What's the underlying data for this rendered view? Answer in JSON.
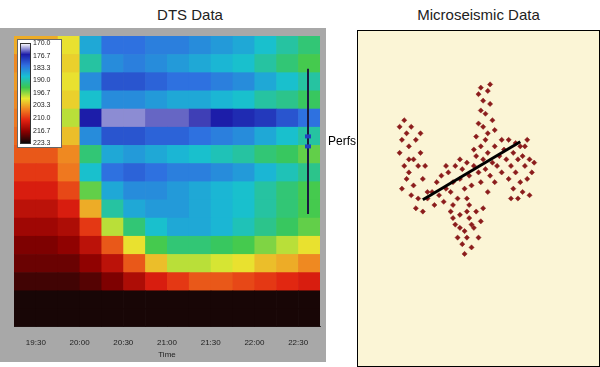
{
  "chart_data": [
    {
      "type": "heatmap",
      "title": "DTS Data",
      "x_label": "Time",
      "x": [
        19.375,
        19.625,
        19.875,
        20.125,
        20.375,
        20.625,
        20.875,
        21.125,
        21.375,
        21.625,
        21.875,
        22.125,
        22.375,
        22.625
      ],
      "y": [
        1,
        2,
        3,
        4,
        5,
        6,
        7,
        8,
        9,
        10,
        11,
        12,
        13,
        14,
        15,
        16
      ],
      "z": [
        [
          203,
          203,
          200,
          186,
          182,
          182,
          183,
          183,
          184,
          185,
          186,
          188,
          190,
          192
        ],
        [
          205,
          204,
          201,
          190,
          184,
          183,
          184,
          185,
          186,
          187,
          188,
          190,
          192,
          194
        ],
        [
          204,
          204,
          200,
          184,
          180,
          180,
          181,
          182,
          182,
          183,
          184,
          186,
          188,
          190
        ],
        [
          205,
          205,
          201,
          188,
          184,
          184,
          185,
          186,
          186,
          187,
          188,
          190,
          191,
          193
        ],
        [
          206,
          206,
          198,
          176,
          173,
          173,
          174,
          174,
          175,
          176,
          177,
          178,
          180,
          182
        ],
        [
          207,
          206,
          202,
          184,
          180,
          180,
          181,
          181,
          182,
          183,
          184,
          186,
          188,
          190
        ],
        [
          208,
          208,
          205,
          192,
          186,
          185,
          186,
          187,
          188,
          189,
          190,
          192,
          193,
          195
        ],
        [
          210,
          210,
          206,
          188,
          182,
          181,
          182,
          183,
          183,
          184,
          185,
          187,
          189,
          191
        ],
        [
          212,
          212,
          209,
          195,
          186,
          184,
          184,
          185,
          186,
          187,
          188,
          190,
          192,
          194
        ],
        [
          214,
          214,
          212,
          203,
          190,
          186,
          185,
          185,
          186,
          187,
          188,
          190,
          192,
          194
        ],
        [
          216,
          216,
          215,
          210,
          198,
          192,
          188,
          186,
          186,
          187,
          189,
          191,
          193,
          195
        ],
        [
          218,
          218,
          217,
          214,
          208,
          200,
          194,
          192,
          192,
          193,
          194,
          196,
          198,
          200
        ],
        [
          219,
          219,
          219,
          217,
          214,
          208,
          202,
          198,
          198,
          199,
          200,
          202,
          203,
          205
        ],
        [
          221,
          221,
          221,
          220,
          218,
          215,
          212,
          210,
          208,
          208,
          209,
          210,
          211,
          212
        ],
        [
          223,
          223,
          223,
          223,
          223,
          223,
          223,
          223,
          223,
          223,
          223,
          223,
          223,
          223
        ],
        [
          223,
          223,
          223,
          223,
          223,
          223,
          223,
          223,
          223,
          223,
          223,
          223,
          223,
          223
        ]
      ],
      "xlim": [
        19.25,
        22.75
      ],
      "xticks": [
        {
          "value": 19.5,
          "label": "19:30"
        },
        {
          "value": 20,
          "label": "20:00"
        },
        {
          "value": 20.5,
          "label": "20:30"
        },
        {
          "value": 21,
          "label": "21:00"
        },
        {
          "value": 21.5,
          "label": "21:30"
        },
        {
          "value": 22,
          "label": "22:00"
        },
        {
          "value": 22.5,
          "label": "22:30"
        }
      ],
      "ylim": [
        16.5,
        0.5
      ],
      "tick_labels": "x",
      "grid": false,
      "colorbar": {
        "range": [
          170,
          223.3
        ],
        "ticks": [
          {
            "value": 170,
            "label": "170.0"
          },
          176.7,
          183.3,
          {
            "value": 190,
            "label": "190.0"
          },
          196.7,
          203.3,
          {
            "value": 210,
            "label": "210.0"
          },
          216.7,
          223.3
        ]
      },
      "annotations": [
        {
          "text": "Perfs",
          "y": [
            2.3,
            10.3
          ]
        }
      ]
    },
    {
      "type": "scatter",
      "title": "Microseismic Data",
      "xlim": [
        0,
        100
      ],
      "ylim": [
        0,
        100
      ],
      "tick_labels": false,
      "grid": false,
      "series": [
        {
          "type": "scatter",
          "color": "#8b1c1c",
          "marker": "diamond",
          "values": [
            [
              16,
              72
            ],
            [
              17,
              68
            ],
            [
              18,
              74
            ],
            [
              16,
              64
            ],
            [
              19,
              70
            ],
            [
              20,
              66
            ],
            [
              18,
              60
            ],
            [
              21,
              72
            ],
            [
              22,
              62
            ],
            [
              20,
              58
            ],
            [
              23,
              68
            ],
            [
              19,
              56
            ],
            [
              24,
              60
            ],
            [
              22,
              54
            ],
            [
              25,
              64
            ],
            [
              21,
              51
            ],
            [
              26,
              56
            ],
            [
              24,
              50
            ],
            [
              17,
              53
            ],
            [
              27,
              60
            ],
            [
              23,
              47
            ],
            [
              28,
              52
            ],
            [
              26,
              46
            ],
            [
              20,
              62
            ],
            [
              25,
              70
            ],
            [
              28,
              50
            ],
            [
              30,
              52
            ],
            [
              31,
              48
            ],
            [
              32,
              55
            ],
            [
              33,
              51
            ],
            [
              34,
              57
            ],
            [
              35,
              49
            ],
            [
              36,
              53
            ],
            [
              37,
              58
            ],
            [
              38,
              52
            ],
            [
              39,
              55
            ],
            [
              40,
              60
            ],
            [
              41,
              50
            ],
            [
              42,
              56
            ],
            [
              43,
              59
            ],
            [
              44,
              53
            ],
            [
              45,
              61
            ],
            [
              46,
              57
            ],
            [
              47,
              54
            ],
            [
              48,
              60
            ],
            [
              49,
              63
            ],
            [
              50,
              58
            ],
            [
              51,
              55
            ],
            [
              52,
              62
            ],
            [
              53,
              59
            ],
            [
              54,
              64
            ],
            [
              55,
              57
            ],
            [
              56,
              61
            ],
            [
              57,
              66
            ],
            [
              58,
              60
            ],
            [
              59,
              63
            ],
            [
              60,
              58
            ],
            [
              61,
              65
            ],
            [
              62,
              62
            ],
            [
              63,
              68
            ],
            [
              64,
              60
            ],
            [
              65,
              64
            ],
            [
              66,
              67
            ],
            [
              67,
              62
            ],
            [
              68,
              66
            ],
            [
              36,
              60
            ],
            [
              39,
              48
            ],
            [
              42,
              62
            ],
            [
              45,
              50
            ],
            [
              48,
              65
            ],
            [
              51,
              66
            ],
            [
              54,
              52
            ],
            [
              57,
              55
            ],
            [
              60,
              68
            ],
            [
              63,
              56
            ],
            [
              50,
              82
            ],
            [
              52,
              80
            ],
            [
              54,
              83
            ],
            [
              51,
              77
            ],
            [
              53,
              76
            ],
            [
              55,
              79
            ],
            [
              50,
              73
            ],
            [
              52,
              72
            ],
            [
              56,
              74
            ],
            [
              54,
              70
            ],
            [
              49,
              69
            ],
            [
              53,
              68
            ],
            [
              57,
              71
            ],
            [
              51,
              84
            ],
            [
              55,
              85
            ],
            [
              66,
              58
            ],
            [
              68,
              55
            ],
            [
              70,
              60
            ],
            [
              69,
              52
            ],
            [
              71,
              56
            ],
            [
              72,
              62
            ],
            [
              67,
              50
            ],
            [
              70,
              66
            ],
            [
              73,
              58
            ],
            [
              65,
              53
            ],
            [
              69,
              63
            ],
            [
              72,
              51
            ],
            [
              64,
              50
            ],
            [
              71,
              68
            ],
            [
              74,
              61
            ],
            [
              38,
              46
            ],
            [
              40,
              42
            ],
            [
              42,
              45
            ],
            [
              44,
              40
            ],
            [
              46,
              44
            ],
            [
              43,
              36
            ],
            [
              45,
              38
            ],
            [
              47,
              35
            ],
            [
              48,
              41
            ],
            [
              50,
              38
            ],
            [
              41,
              38
            ],
            [
              44,
              33
            ],
            [
              46,
              48
            ],
            [
              49,
              46
            ],
            [
              51,
              43
            ],
            [
              52,
              47
            ],
            [
              39,
              44
            ],
            [
              47,
              42
            ],
            [
              45,
              46
            ],
            [
              42,
              41
            ]
          ]
        },
        {
          "type": "line",
          "color": "#000000",
          "line_style": "solid",
          "values": [
            [
              26,
              49.6
            ],
            [
              68,
              67.4
            ]
          ]
        }
      ]
    }
  ]
}
